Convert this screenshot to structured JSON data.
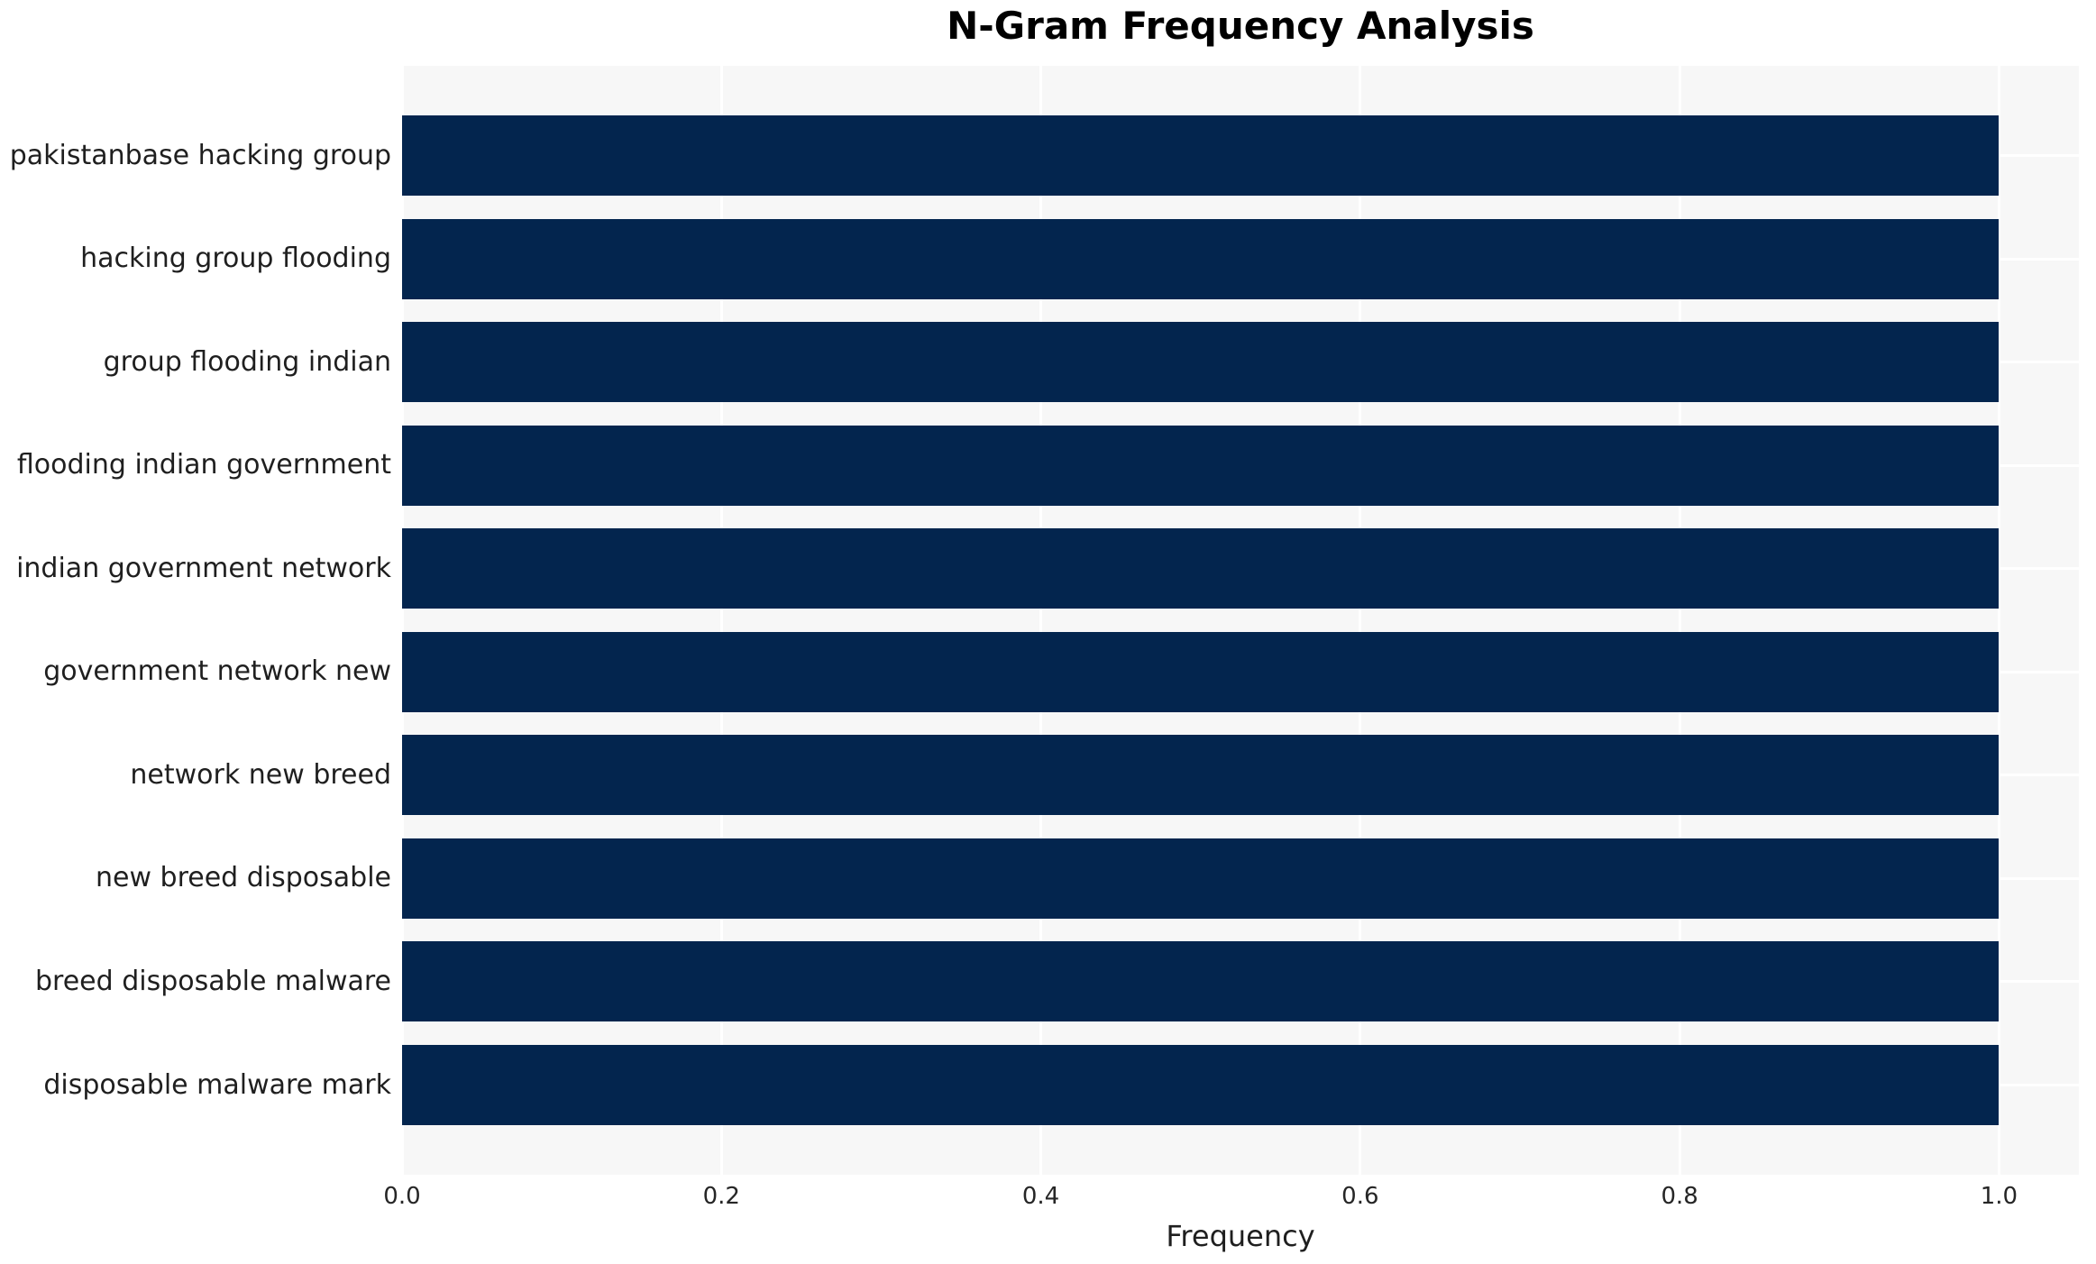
{
  "chart_data": {
    "type": "bar",
    "orientation": "horizontal",
    "title": "N-Gram Frequency Analysis",
    "xlabel": "Frequency",
    "ylabel": "",
    "categories": [
      "pakistanbase hacking group",
      "hacking group flooding",
      "group flooding indian",
      "flooding indian government",
      "indian government network",
      "government network new",
      "network new breed",
      "new breed disposable",
      "breed disposable malware",
      "disposable malware mark"
    ],
    "values": [
      1.0,
      1.0,
      1.0,
      1.0,
      1.0,
      1.0,
      1.0,
      1.0,
      1.0,
      1.0
    ],
    "xticks": [
      {
        "value": 0.0,
        "label": "0.0"
      },
      {
        "value": 0.2,
        "label": "0.2"
      },
      {
        "value": 0.4,
        "label": "0.4"
      },
      {
        "value": 0.6,
        "label": "0.6"
      },
      {
        "value": 0.8,
        "label": "0.8"
      },
      {
        "value": 1.0,
        "label": "1.0"
      }
    ],
    "xlim": [
      0,
      1.05
    ],
    "grid": true,
    "legend_position": "none",
    "colors": {
      "bar": "#03254e",
      "plot_background": "#f7f7f7",
      "figure_background": "#ffffff",
      "grid": "#ffffff",
      "tick_label": "#262626",
      "title": "#000000"
    }
  }
}
